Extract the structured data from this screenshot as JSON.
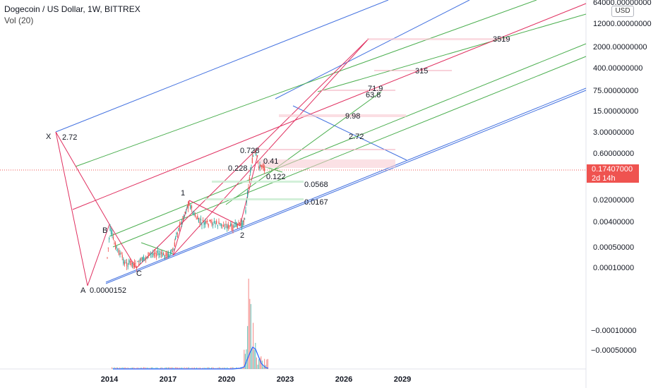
{
  "header": {
    "title": "Dogecoin / US Dollar, 1W, BITTREX",
    "indicator": "Vol (20)"
  },
  "currency_button": "USD",
  "last_price": {
    "value": "0.17407000",
    "countdown": "2d 14h",
    "color": "#ef5350"
  },
  "chart_data": {
    "type": "line",
    "symbol": "Dogecoin / US Dollar",
    "interval": "1W",
    "exchange": "BITTREX",
    "y_scale": "log",
    "price_axis_ticks": [
      "64000.00000000",
      "12000.00000000",
      "2000.00000000",
      "400.00000000",
      "75.00000000",
      "15.00000000",
      "3.00000000",
      "0.60000000",
      "0.02000000",
      "0.00400000",
      "0.00050000",
      "0.00010000"
    ],
    "volume_axis_ticks": [
      "−0.00010000",
      "−0.00050000"
    ],
    "time_axis_ticks": [
      "2014",
      "2017",
      "2020",
      "2023",
      "2026",
      "2029"
    ],
    "pitchfork_points": [
      {
        "label": "X",
        "value": "2.72"
      },
      {
        "label": "A",
        "value": "0.0000152"
      },
      {
        "label": "B",
        "value": ""
      },
      {
        "label": "C",
        "value": ""
      }
    ],
    "wave_labels": [
      "1",
      "2"
    ],
    "fib_levels": [
      "3519",
      "315",
      "71.9",
      "63.8",
      "9.98",
      "2.72",
      "0.728",
      "0.41",
      "0.228",
      "0.122",
      "0.0568",
      "0.0167"
    ],
    "colors": {
      "median_lines": "#4472e0",
      "fork_lines": "#e03060",
      "inner_lines": "#4caf50",
      "candles_up": "#26a69a",
      "candles_down": "#ef5350",
      "volume_ma": "#2962ff"
    }
  }
}
